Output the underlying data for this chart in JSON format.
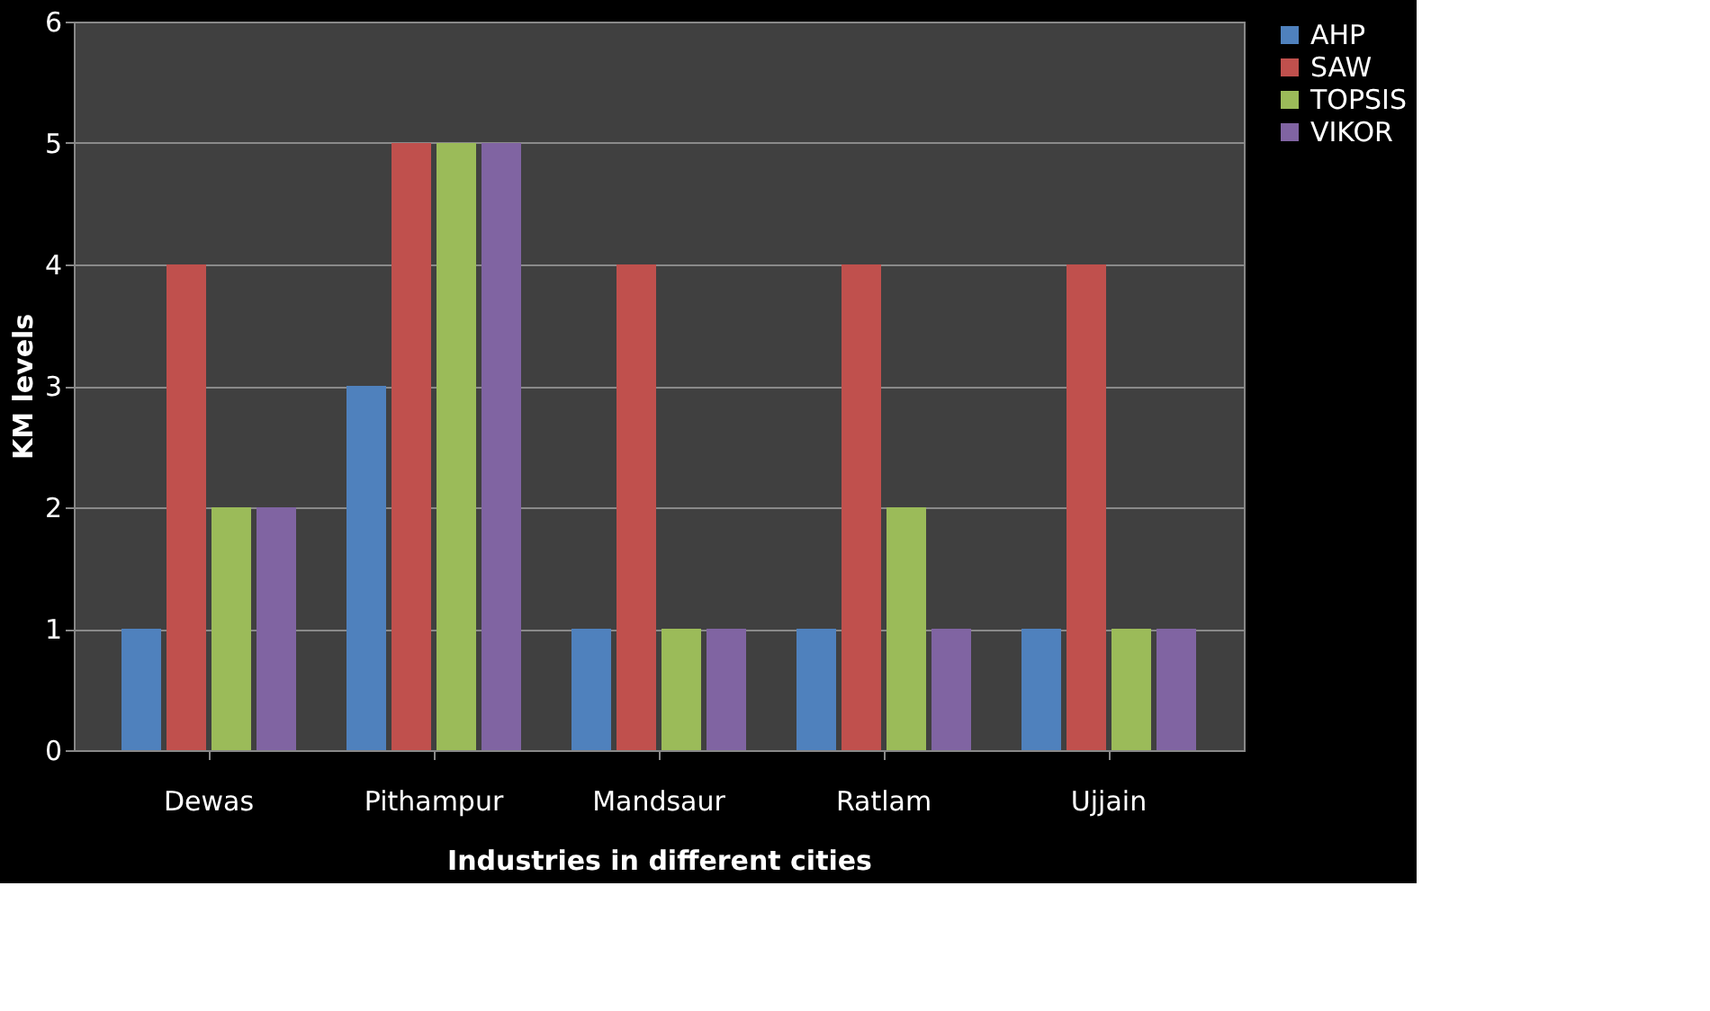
{
  "chart_data": {
    "type": "bar",
    "xlabel": "Industries in different cities",
    "ylabel": "KM levels",
    "categories": [
      "Dewas",
      "Pithampur",
      "Mandsaur",
      "Ratlam",
      "Ujjain"
    ],
    "series": [
      {
        "name": "AHP",
        "color": "#4f81bd",
        "values": [
          1,
          3,
          1,
          1,
          1
        ]
      },
      {
        "name": "SAW",
        "color": "#c0504d",
        "values": [
          4,
          5,
          4,
          4,
          4
        ]
      },
      {
        "name": "TOPSIS",
        "color": "#9bbb59",
        "values": [
          2,
          5,
          1,
          2,
          1
        ]
      },
      {
        "name": "VIKOR",
        "color": "#8064a2",
        "values": [
          2,
          5,
          1,
          1,
          1
        ]
      }
    ],
    "ylim": [
      0,
      6
    ],
    "yticks": [
      0,
      1,
      2,
      3,
      4,
      5,
      6
    ],
    "grid": "y",
    "legend": "right"
  }
}
